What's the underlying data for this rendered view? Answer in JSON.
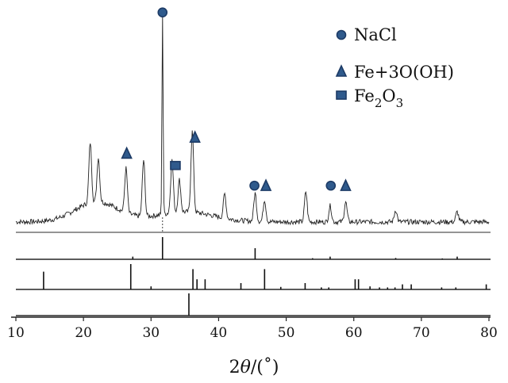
{
  "chart_data": {
    "type": "line",
    "xlabel_prefix": "2",
    "xlabel_theta": "θ",
    "xlabel_suffix": "/(˚)",
    "xlim": [
      10,
      80
    ],
    "x_ticks": [
      "10",
      "20",
      "30",
      "40",
      "50",
      "60",
      "70",
      "80"
    ],
    "ylabel": "",
    "colors": {
      "line": "#222222",
      "marker": "#2f5a8c",
      "marker_edge": "#1d3b66"
    },
    "legend": {
      "position": "top-right",
      "entries": [
        {
          "marker": "circle",
          "label": "NaCl"
        },
        {
          "marker": "triangle",
          "label": "Fe+3O(OH)"
        },
        {
          "marker": "square",
          "label_main": "Fe",
          "label_sub1": "2",
          "label_mid": "O",
          "label_sub2": "3"
        }
      ]
    },
    "pattern": {
      "x_start": 10,
      "x_end": 80,
      "baseline": 0.04,
      "peaks": [
        {
          "x": 21.0,
          "h": 0.3
        },
        {
          "x": 22.2,
          "h": 0.22
        },
        {
          "x": 26.3,
          "h": 0.22
        },
        {
          "x": 28.9,
          "h": 0.28
        },
        {
          "x": 31.7,
          "h": 1.0
        },
        {
          "x": 33.1,
          "h": 0.26
        },
        {
          "x": 34.2,
          "h": 0.16
        },
        {
          "x": 36.1,
          "h": 0.4
        },
        {
          "x": 40.9,
          "h": 0.12
        },
        {
          "x": 45.4,
          "h": 0.14
        },
        {
          "x": 46.8,
          "h": 0.11
        },
        {
          "x": 52.9,
          "h": 0.15
        },
        {
          "x": 56.5,
          "h": 0.08
        },
        {
          "x": 58.8,
          "h": 0.1
        },
        {
          "x": 66.2,
          "h": 0.06
        },
        {
          "x": 75.3,
          "h": 0.05
        }
      ]
    },
    "markers": [
      {
        "type": "circle",
        "x": 31.7,
        "y": 1.08
      },
      {
        "type": "triangle",
        "x": 26.4,
        "y": 0.38
      },
      {
        "type": "triangle",
        "x": 36.5,
        "y": 0.46
      },
      {
        "type": "square",
        "x": 33.6,
        "y": 0.32
      },
      {
        "type": "circle",
        "x": 45.3,
        "y": 0.22
      },
      {
        "type": "triangle",
        "x": 47.0,
        "y": 0.22
      },
      {
        "type": "circle",
        "x": 56.6,
        "y": 0.22
      },
      {
        "type": "triangle",
        "x": 58.8,
        "y": 0.22
      }
    ],
    "reference_patterns": [
      {
        "name": "NaCl",
        "sticks": [
          {
            "x": 27.3,
            "h": 0.12
          },
          {
            "x": 31.7,
            "h": 1.0
          },
          {
            "x": 45.4,
            "h": 0.5
          },
          {
            "x": 53.9,
            "h": 0.05
          },
          {
            "x": 56.5,
            "h": 0.12
          },
          {
            "x": 66.2,
            "h": 0.06
          },
          {
            "x": 73.1,
            "h": 0.04
          },
          {
            "x": 75.3,
            "h": 0.12
          }
        ]
      },
      {
        "name": "Fe+3O(OH)",
        "sticks": [
          {
            "x": 14.1,
            "h": 0.7
          },
          {
            "x": 27.0,
            "h": 1.0
          },
          {
            "x": 30.0,
            "h": 0.12
          },
          {
            "x": 36.2,
            "h": 0.8
          },
          {
            "x": 36.8,
            "h": 0.4
          },
          {
            "x": 38.0,
            "h": 0.4
          },
          {
            "x": 43.3,
            "h": 0.25
          },
          {
            "x": 46.8,
            "h": 0.8
          },
          {
            "x": 49.2,
            "h": 0.1
          },
          {
            "x": 52.8,
            "h": 0.25
          },
          {
            "x": 55.2,
            "h": 0.08
          },
          {
            "x": 56.3,
            "h": 0.08
          },
          {
            "x": 60.2,
            "h": 0.4
          },
          {
            "x": 60.7,
            "h": 0.4
          },
          {
            "x": 62.4,
            "h": 0.12
          },
          {
            "x": 63.8,
            "h": 0.08
          },
          {
            "x": 65.0,
            "h": 0.08
          },
          {
            "x": 66.1,
            "h": 0.08
          },
          {
            "x": 67.2,
            "h": 0.2
          },
          {
            "x": 68.5,
            "h": 0.2
          },
          {
            "x": 73.0,
            "h": 0.08
          },
          {
            "x": 75.1,
            "h": 0.08
          },
          {
            "x": 79.6,
            "h": 0.2
          }
        ]
      },
      {
        "name": "Fe2O3",
        "sticks": [
          {
            "x": 35.6,
            "h": 1.0
          }
        ]
      }
    ]
  }
}
